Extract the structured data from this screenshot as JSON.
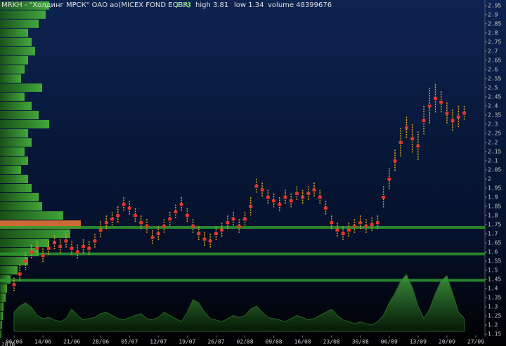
{
  "chart_data": {
    "type": "range-bar",
    "header": {
      "symbol": "MRKH - \"Холдинг МРСК\" ОАО ао(MICEX FOND EQBR)",
      "last": "2.38",
      "high": "high 3.81",
      "low": "low 1.34",
      "volume": "volume 48399676"
    },
    "year": "2010",
    "categories": [
      "06/06",
      null,
      null,
      null,
      null,
      "14/06",
      null,
      null,
      null,
      null,
      "21/06",
      null,
      null,
      null,
      null,
      "28/06",
      null,
      null,
      null,
      null,
      "05/07",
      null,
      null,
      null,
      null,
      "12/07",
      null,
      null,
      null,
      null,
      "19/07",
      null,
      null,
      null,
      null,
      "26/07",
      null,
      null,
      null,
      null,
      "02/08",
      null,
      null,
      null,
      null,
      "09/08",
      null,
      null,
      null,
      null,
      "16/08",
      null,
      null,
      null,
      null,
      "23/08",
      null,
      null,
      null,
      null,
      "30/08",
      null,
      null,
      null,
      null,
      "06/09",
      null,
      null,
      null,
      null,
      "13/09",
      null,
      null,
      null,
      null,
      "20/09",
      null,
      null,
      null,
      null,
      "27/09"
    ],
    "high": [
      1.46,
      1.53,
      1.6,
      1.64,
      1.66,
      1.62,
      1.66,
      1.69,
      1.67,
      1.7,
      1.66,
      1.64,
      1.67,
      1.66,
      1.7,
      1.77,
      1.8,
      1.82,
      1.85,
      1.9,
      1.88,
      1.84,
      1.8,
      1.78,
      1.72,
      1.74,
      1.78,
      1.82,
      1.86,
      1.9,
      1.84,
      1.78,
      1.74,
      1.71,
      1.7,
      1.74,
      1.76,
      1.8,
      1.82,
      1.78,
      1.82,
      1.9,
      2.0,
      1.98,
      1.94,
      1.92,
      1.9,
      1.94,
      1.92,
      1.96,
      1.94,
      1.96,
      1.98,
      1.94,
      1.88,
      1.8,
      1.76,
      1.74,
      1.76,
      1.78,
      1.8,
      1.78,
      1.79,
      1.8,
      1.96,
      2.06,
      2.16,
      2.28,
      2.34,
      2.3,
      2.26,
      2.4,
      2.5,
      2.52,
      2.48,
      2.42,
      2.38,
      2.4,
      2.4,
      null,
      null
    ],
    "low": [
      1.38,
      1.44,
      1.5,
      1.56,
      1.58,
      1.54,
      1.58,
      1.61,
      1.59,
      1.62,
      1.58,
      1.56,
      1.59,
      1.58,
      1.62,
      1.68,
      1.72,
      1.74,
      1.76,
      1.82,
      1.8,
      1.76,
      1.72,
      1.7,
      1.64,
      1.66,
      1.7,
      1.74,
      1.78,
      1.82,
      1.76,
      1.7,
      1.66,
      1.63,
      1.62,
      1.66,
      1.68,
      1.72,
      1.74,
      1.7,
      1.74,
      1.8,
      1.92,
      1.9,
      1.86,
      1.84,
      1.82,
      1.86,
      1.84,
      1.88,
      1.86,
      1.88,
      1.9,
      1.86,
      1.8,
      1.72,
      1.68,
      1.66,
      1.68,
      1.7,
      1.72,
      1.7,
      1.71,
      1.72,
      1.84,
      1.94,
      2.04,
      2.12,
      2.22,
      2.14,
      2.1,
      2.24,
      2.3,
      2.36,
      2.36,
      2.3,
      2.26,
      2.28,
      2.32,
      null,
      null
    ],
    "close": [
      1.42,
      1.48,
      1.55,
      1.6,
      1.62,
      1.58,
      1.62,
      1.65,
      1.63,
      1.66,
      1.62,
      1.6,
      1.63,
      1.62,
      1.66,
      1.72,
      1.76,
      1.78,
      1.8,
      1.86,
      1.84,
      1.8,
      1.76,
      1.74,
      1.68,
      1.7,
      1.74,
      1.78,
      1.82,
      1.86,
      1.8,
      1.74,
      1.7,
      1.67,
      1.66,
      1.7,
      1.72,
      1.76,
      1.78,
      1.74,
      1.78,
      1.85,
      1.96,
      1.94,
      1.9,
      1.88,
      1.86,
      1.9,
      1.88,
      1.92,
      1.9,
      1.92,
      1.94,
      1.9,
      1.84,
      1.76,
      1.72,
      1.7,
      1.72,
      1.74,
      1.76,
      1.74,
      1.75,
      1.76,
      1.9,
      2.0,
      2.1,
      2.2,
      2.28,
      2.22,
      2.18,
      2.32,
      2.4,
      2.44,
      2.42,
      2.36,
      2.32,
      2.34,
      2.36,
      null,
      null
    ],
    "volume": [
      30,
      40,
      45,
      38,
      25,
      20,
      22,
      18,
      15,
      20,
      35,
      25,
      18,
      20,
      22,
      28,
      30,
      25,
      20,
      18,
      22,
      25,
      28,
      20,
      18,
      22,
      30,
      25,
      20,
      15,
      30,
      50,
      45,
      30,
      20,
      18,
      15,
      20,
      25,
      22,
      25,
      35,
      40,
      30,
      22,
      20,
      18,
      15,
      20,
      25,
      22,
      18,
      20,
      25,
      30,
      35,
      25,
      18,
      15,
      12,
      15,
      12,
      10,
      15,
      25,
      45,
      60,
      80,
      90,
      70,
      40,
      20,
      35,
      60,
      80,
      88,
      60,
      30,
      20,
      null,
      null
    ],
    "vlim": [
      0,
      100
    ],
    "profile": [
      70,
      65,
      55,
      40,
      45,
      50,
      40,
      35,
      30,
      60,
      35,
      45,
      55,
      70,
      40,
      45,
      35,
      40,
      30,
      40,
      45,
      55,
      60,
      90,
      115,
      100,
      70,
      55,
      40,
      25,
      15,
      10,
      8,
      5,
      4,
      3,
      2
    ],
    "plim": [
      0,
      120
    ],
    "levels": [
      1.735,
      1.59,
      1.445
    ],
    "ylim": [
      1.12,
      2.98
    ],
    "yticks": [
      2.95,
      2.9,
      2.85,
      2.8,
      2.75,
      2.7,
      2.65,
      2.6,
      2.55,
      2.5,
      2.45,
      2.4,
      2.35,
      2.3,
      2.25,
      2.2,
      2.15,
      2.1,
      2.05,
      2,
      1.95,
      1.9,
      1.85,
      1.8,
      1.75,
      1.7,
      1.65,
      1.6,
      1.55,
      1.5,
      1.45,
      1.4,
      1.35,
      1.3,
      1.25,
      1.2,
      1.15
    ],
    "color": "#d9a520",
    "level_color": "#2e9a2e",
    "volume_color": "#2a6e2a",
    "profile_color": "#3c9c2c",
    "profile_peak_color": "#f07a3a"
  }
}
